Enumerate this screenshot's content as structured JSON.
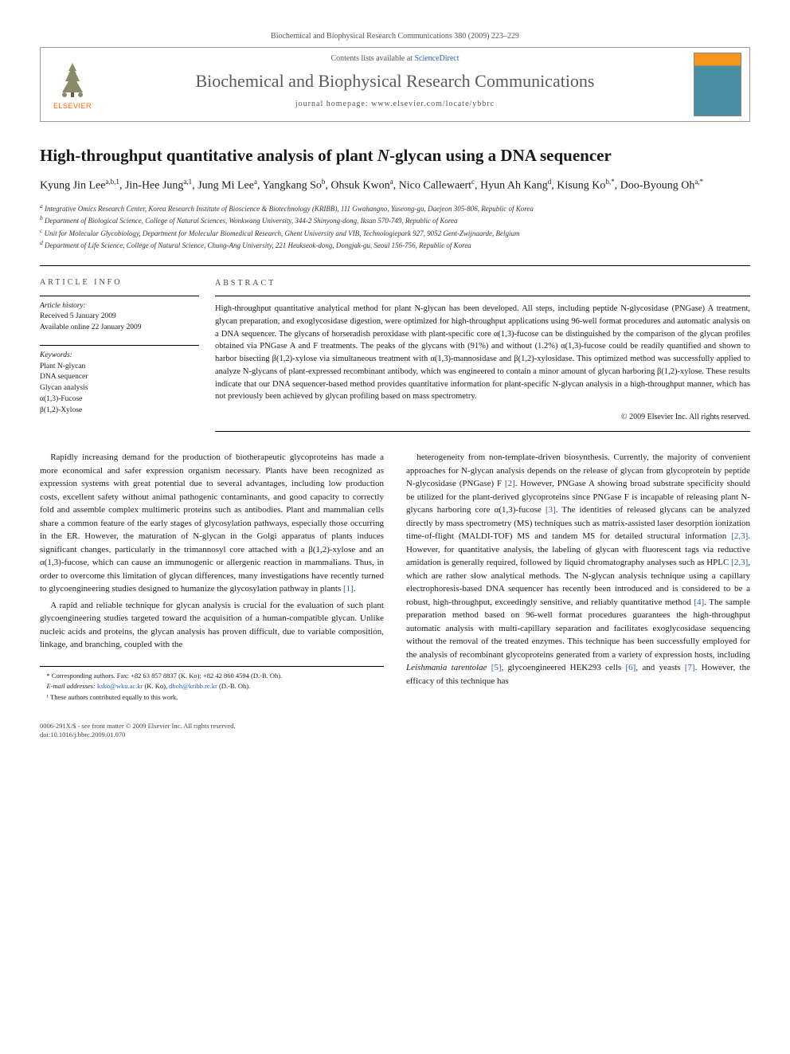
{
  "header": {
    "journal_line": "Biochemical and Biophysical Research Communications 380 (2009) 223–229",
    "contents_label": "Contents lists available at ",
    "contents_link": "ScienceDirect",
    "journal_name": "Biochemical and Biophysical Research Communications",
    "homepage_label": "journal homepage: www.elsevier.com/locate/ybbrc",
    "publisher_label": "ELSEVIER",
    "logo_colors": {
      "tree": "#8a8a6a",
      "label": "#ff6600"
    },
    "cover_colors": {
      "top": "#f7941e",
      "bottom": "#4a90a4"
    }
  },
  "title_html": "High-throughput quantitative analysis of plant <em>N</em>-glycan using a DNA sequencer",
  "authors_html": "Kyung Jin Lee<sup>a,b,1</sup>, Jin-Hee Jung<sup>a,1</sup>, Jung Mi Lee<sup>a</sup>, Yangkang So<sup>b</sup>, Ohsuk Kwon<sup>a</sup>, Nico Callewaert<sup>c</sup>, Hyun Ah Kang<sup>d</sup>, Kisung Ko<sup>b,*</sup>, Doo-Byoung Oh<sup>a,*</sup>",
  "affiliations": [
    "<sup>a</sup> Integrative Omics Research Center, Korea Research Institute of Bioscience & Biotechnology (KRIBB), 111 Gwahangno, Yuseong-gu, Daejeon 305-806, Republic of Korea",
    "<sup>b</sup> Department of Biological Science, College of Natural Sciences, Wonkwang University, 344-2 Shinyong-dong, Iksan 570-749, Republic of Korea",
    "<sup>c</sup> Unit for Molecular Glycobiology, Department for Molecular Biomedical Research, Ghent University and VIB, Technologiepark 927, 9052 Gent-Zwijnaarde, Belgium",
    "<sup>d</sup> Department of Life Science, College of Natural Science, Chung-Ang University, 221 Heukseok-dong, Dongjak-gu, Seoul 156-756, Republic of Korea"
  ],
  "article_info": {
    "heading": "ARTICLE INFO",
    "history_label": "Article history:",
    "received": "Received 5 January 2009",
    "available": "Available online 22 January 2009",
    "keywords_label": "Keywords:",
    "keywords": [
      "Plant N-glycan",
      "DNA sequencer",
      "Glycan analysis",
      "α(1,3)-Fucose",
      "β(1,2)-Xylose"
    ]
  },
  "abstract": {
    "heading": "ABSTRACT",
    "text": "High-throughput quantitative analytical method for plant N-glycan has been developed. All steps, including peptide N-glycosidase (PNGase) A treatment, glycan preparation, and exoglycosidase digestion, were optimized for high-throughput applications using 96-well format procedures and automatic analysis on a DNA sequencer. The glycans of horseradish peroxidase with plant-specific core α(1,3)-fucose can be distinguished by the comparison of the glycan profiles obtained via PNGase A and F treatments. The peaks of the glycans with (91%) and without (1.2%) α(1,3)-fucose could be readily quantified and shown to harbor bisecting β(1,2)-xylose via simultaneous treatment with α(1,3)-mannosidase and β(1,2)-xylosidase. This optimized method was successfully applied to analyze N-glycans of plant-expressed recombinant antibody, which was engineered to contain a minor amount of glycan harboring β(1,2)-xylose. These results indicate that our DNA sequencer-based method provides quantitative information for plant-specific N-glycan analysis in a high-throughput manner, which has not previously been achieved by glycan profiling based on mass spectrometry."
  },
  "copyright": "© 2009 Elsevier Inc. All rights reserved.",
  "body": {
    "left": [
      "Rapidly increasing demand for the production of biotherapeutic glycoproteins has made a more economical and safer expression organism necessary. Plants have been recognized as expression systems with great potential due to several advantages, including low production costs, excellent safety without animal pathogenic contaminants, and good capacity to correctly fold and assemble complex multimeric proteins such as antibodies. Plant and mammalian cells share a common feature of the early stages of glycosylation pathways, especially those occurring in the ER. However, the maturation of N-glycan in the Golgi apparatus of plants induces significant changes, particularly in the trimannosyl core attached with a β(1,2)-xylose and an α(1,3)-fucose, which can cause an immunogenic or allergenic reaction in mammalians. Thus, in order to overcome this limitation of glycan differences, many investigations have recently turned to glycoengineering studies designed to humanize the glycosylation pathway in plants <a href='#'>[1]</a>.",
      "A rapid and reliable technique for glycan analysis is crucial for the evaluation of such plant glycoengineering studies targeted toward the acquisition of a human-compatible glycan. Unlike nucleic acids and proteins, the glycan analysis has proven difficult, due to variable composition, linkage, and branching, coupled with the"
    ],
    "right": [
      "heterogeneity from non-template-driven biosynthesis. Currently, the majority of convenient approaches for N-glycan analysis depends on the release of glycan from glycoprotein by peptide N-glycosidase (PNGase) F <a href='#'>[2]</a>. However, PNGase A showing broad substrate specificity should be utilized for the plant-derived glycoproteins since PNGase F is incapable of releasing plant N-glycans harboring core α(1,3)-fucose <a href='#'>[3]</a>. The identities of released glycans can be analyzed directly by mass spectrometry (MS) techniques such as matrix-assisted laser desorption ionization time-of-flight (MALDI-TOF) MS and tandem MS for detailed structural information <a href='#'>[2,3]</a>. However, for quantitative analysis, the labeling of glycan with fluorescent tags via reductive amidation is generally required, followed by liquid chromatography analyses such as HPLC <a href='#'>[2,3]</a>, which are rather slow analytical methods. The N-glycan analysis technique using a capillary electrophoresis-based DNA sequencer has recently been introduced and is considered to be a robust, high-throughput, exceedingly sensitive, and reliably quantitative method <a href='#'>[4]</a>. The sample preparation method based on 96-well format procedures guarantees the high-throughput automatic analysis with multi-capillary separation and facilitates exoglycosidase sequencing without the removal of the treated enzymes. This technique has been successfully employed for the analysis of recombinant glycoproteins generated from a variety of expression hosts, including <em>Leishmania tarentolae</em> <a href='#'>[5]</a>, glycoengineered HEK293 cells <a href='#'>[6]</a>, and yeasts <a href='#'>[7]</a>. However, the efficacy of this technique has"
    ]
  },
  "footnotes": {
    "corresponding": "* Corresponding authors. Fax: +82 63 857 8837 (K. Ko); +82 42 860 4594 (D.-B. Oh).",
    "emails_label": "E-mail addresses:",
    "emails_html": "<a href='#'>ksko@wku.ac.kr</a> (K. Ko), <a href='#'>dboh@kribb.re.kr</a> (D.-B. Oh).",
    "equal": "¹ These authors contributed equally to this work."
  },
  "footer": {
    "issn": "0006-291X/$ - see front matter © 2009 Elsevier Inc. All rights reserved.",
    "doi": "doi:10.1016/j.bbrc.2009.01.070"
  },
  "colors": {
    "text": "#1a1a1a",
    "link": "#2a5db0",
    "rule": "#000000",
    "muted": "#555555"
  },
  "typography": {
    "body_family": "Georgia, Times New Roman, serif",
    "title_pt": 21,
    "author_pt": 14,
    "abstract_pt": 10.5,
    "body_pt": 11,
    "footnote_pt": 8.5
  }
}
